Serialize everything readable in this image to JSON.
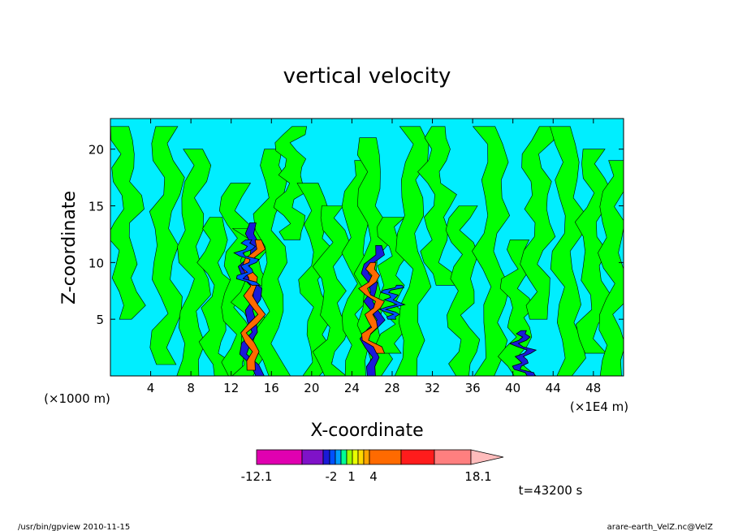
{
  "chart_data": {
    "type": "heatmap",
    "title": "vertical velocity",
    "xlabel": "X-coordinate",
    "ylabel": "Z-coordinate",
    "x_unit_left": "(×1000 m)",
    "x_unit_right": "(×1E4 m)",
    "xlim": [
      0,
      51
    ],
    "ylim": [
      0,
      22.7
    ],
    "x_ticks": [
      4,
      8,
      12,
      16,
      20,
      24,
      28,
      32,
      36,
      40,
      44,
      48
    ],
    "y_ticks": [
      5,
      10,
      15,
      20
    ],
    "grid": false,
    "background_color": "#00eeff",
    "updraft_color": "#00ff00",
    "colorbar": {
      "colors": [
        "#e000b0",
        "#7f12c8",
        "#1a1ad8",
        "#0050ff",
        "#009cff",
        "#00ff95",
        "#9dff00",
        "#e8ff00",
        "#ffd800",
        "#ffa400",
        "#ff6a00",
        "#ff1c1c",
        "#ff7f7f",
        "#ffbcbc"
      ],
      "tick_labels": [
        "-12.1",
        "-2",
        "1",
        "4",
        "18.1"
      ],
      "range": [
        -12.1,
        18.1
      ]
    },
    "time_label": "t=43200 s",
    "streaks": [
      {
        "x": 1.5,
        "z0": 5,
        "z1": 22,
        "color": "#00ff00"
      },
      {
        "x": 5.5,
        "z0": 1,
        "z1": 22,
        "color": "#00ff00"
      },
      {
        "x": 8.2,
        "z0": 0,
        "z1": 20,
        "color": "#00ff00"
      },
      {
        "x": 10.5,
        "z0": 0,
        "z1": 14,
        "color": "#00ff00"
      },
      {
        "x": 12.5,
        "z0": 0,
        "z1": 17,
        "color": "#00ff00"
      },
      {
        "x": 14.0,
        "z0": 0,
        "z1": 13,
        "color": "#00ff00"
      },
      {
        "x": 16.0,
        "z0": 0,
        "z1": 20,
        "color": "#00ff00"
      },
      {
        "x": 18.0,
        "z0": 12,
        "z1": 22,
        "color": "#00ff00"
      },
      {
        "x": 20.5,
        "z0": 0,
        "z1": 17,
        "color": "#00ff00"
      },
      {
        "x": 22.0,
        "z0": 0,
        "z1": 15,
        "color": "#00ff00"
      },
      {
        "x": 24.5,
        "z0": 0,
        "z1": 19,
        "color": "#00ff00"
      },
      {
        "x": 26.0,
        "z0": 0,
        "z1": 21,
        "color": "#00ff00"
      },
      {
        "x": 28.0,
        "z0": 2,
        "z1": 14,
        "color": "#00ff00"
      },
      {
        "x": 30.0,
        "z0": 0,
        "z1": 22,
        "color": "#00ff00"
      },
      {
        "x": 32.5,
        "z0": 8,
        "z1": 22,
        "color": "#00ff00"
      },
      {
        "x": 35.0,
        "z0": 0,
        "z1": 15,
        "color": "#00ff00"
      },
      {
        "x": 38.0,
        "z0": 0,
        "z1": 22,
        "color": "#00ff00"
      },
      {
        "x": 40.5,
        "z0": 0,
        "z1": 12,
        "color": "#00ff00"
      },
      {
        "x": 42.5,
        "z0": 5,
        "z1": 22,
        "color": "#00ff00"
      },
      {
        "x": 45.5,
        "z0": 0,
        "z1": 22,
        "color": "#00ff00"
      },
      {
        "x": 48.0,
        "z0": 2,
        "z1": 20,
        "color": "#00ff00"
      },
      {
        "x": 50.0,
        "z0": 0,
        "z1": 19,
        "color": "#00ff00"
      }
    ],
    "cores": [
      {
        "x": 14.0,
        "z0": 0,
        "z1": 13.5,
        "color": "#1a1ad8"
      },
      {
        "x": 14.1,
        "z0": 0.5,
        "z1": 12,
        "color": "#ff6a00"
      },
      {
        "x": 13.6,
        "z0": 8,
        "z1": 12,
        "color": "#0050ff"
      },
      {
        "x": 26.0,
        "z0": 0,
        "z1": 11.5,
        "color": "#1a1ad8"
      },
      {
        "x": 26.0,
        "z0": 2,
        "z1": 10,
        "color": "#ff6a00"
      },
      {
        "x": 28.0,
        "z0": 5,
        "z1": 8,
        "color": "#0050ff"
      },
      {
        "x": 41.0,
        "z0": 0,
        "z1": 4,
        "color": "#1a1ad8"
      }
    ]
  },
  "footer": {
    "left": "/usr/bin/gpview   2010-11-15",
    "right": "arare-earth_VelZ.nc@VelZ"
  }
}
